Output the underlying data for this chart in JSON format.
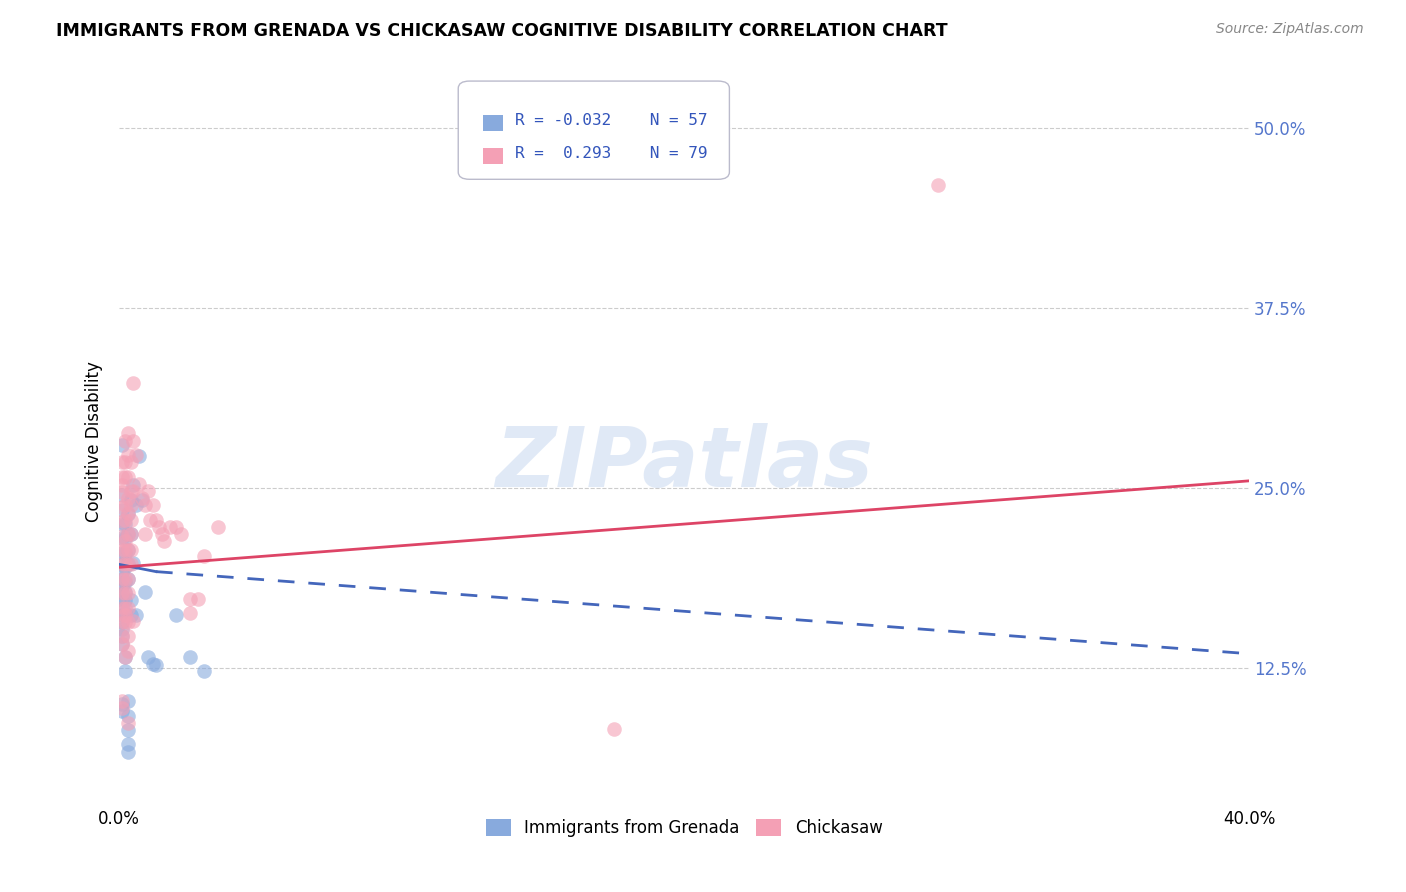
{
  "title": "IMMIGRANTS FROM GRENADA VS CHICKASAW COGNITIVE DISABILITY CORRELATION CHART",
  "source": "Source: ZipAtlas.com",
  "ylabel": "Cognitive Disability",
  "ytick_vals": [
    0.125,
    0.25,
    0.375,
    0.5
  ],
  "xlim": [
    0.0,
    0.4
  ],
  "ylim": [
    0.03,
    0.535
  ],
  "blue_color": "#88aadd",
  "pink_color": "#f4a0b5",
  "blue_line_color": "#4466bb",
  "pink_line_color": "#dd4466",
  "watermark": "ZIPatlas",
  "blue_line_solid": [
    [
      0.0,
      0.197
    ],
    [
      0.013,
      0.192
    ]
  ],
  "blue_line_dash": [
    [
      0.013,
      0.192
    ],
    [
      0.4,
      0.135
    ]
  ],
  "pink_line": [
    [
      0.0,
      0.195
    ],
    [
      0.4,
      0.255
    ]
  ],
  "blue_scatter": [
    [
      0.001,
      0.28
    ],
    [
      0.001,
      0.245
    ],
    [
      0.001,
      0.235
    ],
    [
      0.001,
      0.225
    ],
    [
      0.001,
      0.215
    ],
    [
      0.001,
      0.205
    ],
    [
      0.001,
      0.197
    ],
    [
      0.001,
      0.192
    ],
    [
      0.001,
      0.187
    ],
    [
      0.001,
      0.182
    ],
    [
      0.001,
      0.177
    ],
    [
      0.001,
      0.172
    ],
    [
      0.001,
      0.167
    ],
    [
      0.001,
      0.162
    ],
    [
      0.001,
      0.157
    ],
    [
      0.001,
      0.152
    ],
    [
      0.001,
      0.147
    ],
    [
      0.001,
      0.142
    ],
    [
      0.001,
      0.1
    ],
    [
      0.001,
      0.095
    ],
    [
      0.002,
      0.225
    ],
    [
      0.002,
      0.215
    ],
    [
      0.002,
      0.205
    ],
    [
      0.002,
      0.195
    ],
    [
      0.002,
      0.185
    ],
    [
      0.002,
      0.178
    ],
    [
      0.002,
      0.172
    ],
    [
      0.002,
      0.163
    ],
    [
      0.002,
      0.133
    ],
    [
      0.002,
      0.123
    ],
    [
      0.003,
      0.232
    ],
    [
      0.003,
      0.218
    ],
    [
      0.003,
      0.207
    ],
    [
      0.003,
      0.197
    ],
    [
      0.003,
      0.187
    ],
    [
      0.003,
      0.102
    ],
    [
      0.003,
      0.092
    ],
    [
      0.003,
      0.082
    ],
    [
      0.003,
      0.072
    ],
    [
      0.003,
      0.067
    ],
    [
      0.004,
      0.242
    ],
    [
      0.004,
      0.218
    ],
    [
      0.004,
      0.172
    ],
    [
      0.004,
      0.162
    ],
    [
      0.005,
      0.252
    ],
    [
      0.005,
      0.198
    ],
    [
      0.006,
      0.238
    ],
    [
      0.006,
      0.162
    ],
    [
      0.007,
      0.272
    ],
    [
      0.008,
      0.242
    ],
    [
      0.009,
      0.178
    ],
    [
      0.01,
      0.133
    ],
    [
      0.012,
      0.128
    ],
    [
      0.013,
      0.127
    ],
    [
      0.02,
      0.162
    ],
    [
      0.025,
      0.133
    ],
    [
      0.03,
      0.123
    ]
  ],
  "pink_scatter": [
    [
      0.001,
      0.268
    ],
    [
      0.001,
      0.258
    ],
    [
      0.001,
      0.252
    ],
    [
      0.001,
      0.247
    ],
    [
      0.001,
      0.237
    ],
    [
      0.001,
      0.227
    ],
    [
      0.001,
      0.217
    ],
    [
      0.001,
      0.207
    ],
    [
      0.001,
      0.197
    ],
    [
      0.001,
      0.187
    ],
    [
      0.001,
      0.177
    ],
    [
      0.001,
      0.167
    ],
    [
      0.001,
      0.157
    ],
    [
      0.001,
      0.147
    ],
    [
      0.001,
      0.142
    ],
    [
      0.001,
      0.102
    ],
    [
      0.001,
      0.097
    ],
    [
      0.002,
      0.283
    ],
    [
      0.002,
      0.268
    ],
    [
      0.002,
      0.258
    ],
    [
      0.002,
      0.238
    ],
    [
      0.002,
      0.228
    ],
    [
      0.002,
      0.213
    ],
    [
      0.002,
      0.207
    ],
    [
      0.002,
      0.197
    ],
    [
      0.002,
      0.187
    ],
    [
      0.002,
      0.177
    ],
    [
      0.002,
      0.167
    ],
    [
      0.002,
      0.162
    ],
    [
      0.002,
      0.157
    ],
    [
      0.002,
      0.133
    ],
    [
      0.003,
      0.288
    ],
    [
      0.003,
      0.273
    ],
    [
      0.003,
      0.258
    ],
    [
      0.003,
      0.243
    ],
    [
      0.003,
      0.233
    ],
    [
      0.003,
      0.218
    ],
    [
      0.003,
      0.207
    ],
    [
      0.003,
      0.197
    ],
    [
      0.003,
      0.187
    ],
    [
      0.003,
      0.177
    ],
    [
      0.003,
      0.167
    ],
    [
      0.003,
      0.157
    ],
    [
      0.003,
      0.147
    ],
    [
      0.003,
      0.137
    ],
    [
      0.003,
      0.087
    ],
    [
      0.004,
      0.268
    ],
    [
      0.004,
      0.248
    ],
    [
      0.004,
      0.238
    ],
    [
      0.004,
      0.228
    ],
    [
      0.004,
      0.218
    ],
    [
      0.004,
      0.207
    ],
    [
      0.004,
      0.197
    ],
    [
      0.005,
      0.323
    ],
    [
      0.005,
      0.283
    ],
    [
      0.005,
      0.248
    ],
    [
      0.005,
      0.158
    ],
    [
      0.006,
      0.273
    ],
    [
      0.007,
      0.253
    ],
    [
      0.008,
      0.243
    ],
    [
      0.009,
      0.238
    ],
    [
      0.009,
      0.218
    ],
    [
      0.01,
      0.248
    ],
    [
      0.011,
      0.228
    ],
    [
      0.012,
      0.238
    ],
    [
      0.013,
      0.228
    ],
    [
      0.014,
      0.223
    ],
    [
      0.015,
      0.218
    ],
    [
      0.016,
      0.213
    ],
    [
      0.018,
      0.223
    ],
    [
      0.02,
      0.223
    ],
    [
      0.022,
      0.218
    ],
    [
      0.025,
      0.173
    ],
    [
      0.025,
      0.163
    ],
    [
      0.028,
      0.173
    ],
    [
      0.03,
      0.203
    ],
    [
      0.035,
      0.223
    ],
    [
      0.29,
      0.46
    ],
    [
      0.175,
      0.083
    ]
  ]
}
